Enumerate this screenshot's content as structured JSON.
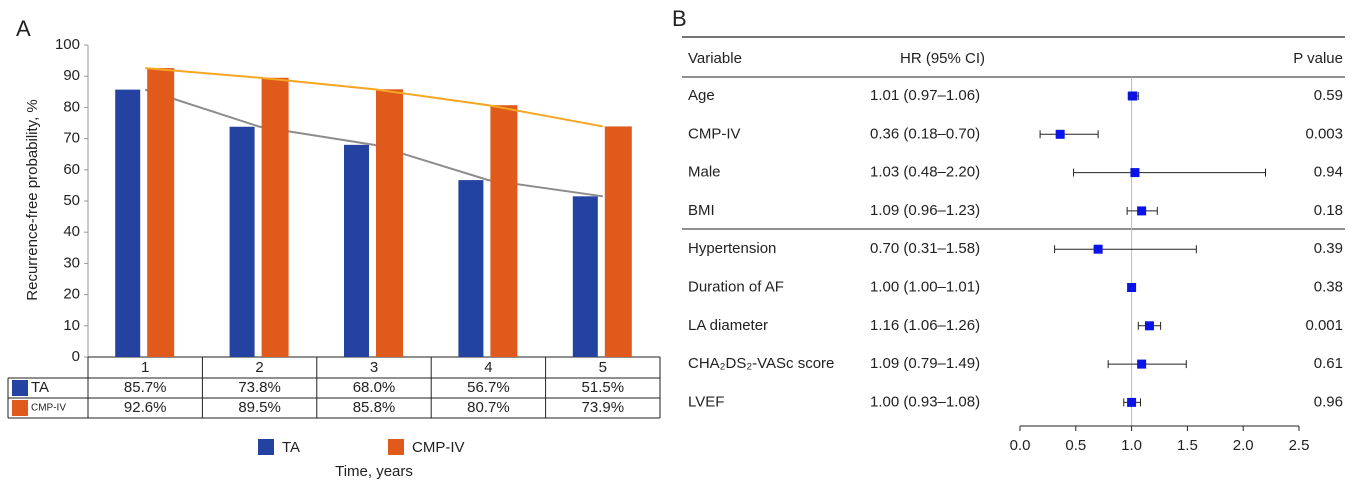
{
  "chart_data": [
    {
      "type": "bar",
      "panel": "A",
      "y_label": "Recurrence-free probability, %",
      "x_label": "Time, years",
      "categories": [
        "1",
        "2",
        "3",
        "4",
        "5"
      ],
      "series": [
        {
          "name": "TA",
          "color": "#2443a0",
          "line_color": "#8c8c8c",
          "values": [
            85.7,
            73.8,
            68.0,
            56.7,
            51.5
          ],
          "value_labels": [
            "85.7%",
            "73.8%",
            "68.0%",
            "56.7%",
            "51.5%"
          ]
        },
        {
          "name": "CMP-IV",
          "color": "#e05a1c",
          "line_color": "#f5a623",
          "values": [
            92.6,
            89.5,
            85.8,
            80.7,
            73.9
          ],
          "value_labels": [
            "92.6%",
            "89.5%",
            "85.8%",
            "80.7%",
            "73.9%"
          ]
        }
      ],
      "ylim": [
        0,
        100
      ],
      "yticks": [
        0,
        10,
        20,
        30,
        40,
        50,
        60,
        70,
        80,
        90,
        100
      ]
    },
    {
      "type": "forest",
      "panel": "B",
      "column_headers": [
        "Variable",
        "HR (95% CI)",
        "P value"
      ],
      "categories": [
        "Age",
        "CMP-IV",
        "Male",
        "BMI",
        "Hypertension",
        "Duration of AF",
        "LA diameter",
        "CHA₂DS₂-VASc score",
        "LVEF"
      ],
      "values": [
        1.01,
        0.36,
        1.03,
        1.09,
        0.7,
        1.0,
        1.16,
        1.09,
        1.0
      ],
      "ci_low": [
        0.97,
        0.18,
        0.48,
        0.96,
        0.31,
        1.0,
        1.06,
        0.79,
        0.93
      ],
      "ci_high": [
        1.06,
        0.7,
        2.2,
        1.23,
        1.58,
        1.01,
        1.26,
        1.49,
        1.08
      ],
      "value_labels": [
        "1.01 (0.97–1.06)",
        "0.36 (0.18–0.70)",
        "1.03 (0.48–2.20)",
        "1.09 (0.96–1.23)",
        "0.70 (0.31–1.58)",
        "1.00 (1.00–1.01)",
        "1.16 (1.06–1.26)",
        "1.09 (0.79–1.49)",
        "1.00 (0.93–1.08)"
      ],
      "p_values": [
        0.59,
        0.003,
        0.94,
        0.18,
        0.39,
        0.38,
        0.001,
        0.61,
        0.96
      ],
      "reference_line": 1,
      "color": "#0a14e6",
      "xlim": [
        0,
        2.5
      ],
      "xticks": [
        {
          "value": 0,
          "label": "0.0"
        },
        0.5,
        {
          "value": 1,
          "label": "1.0"
        },
        1.5,
        {
          "value": 2,
          "label": "2.0"
        },
        2.5
      ]
    }
  ]
}
